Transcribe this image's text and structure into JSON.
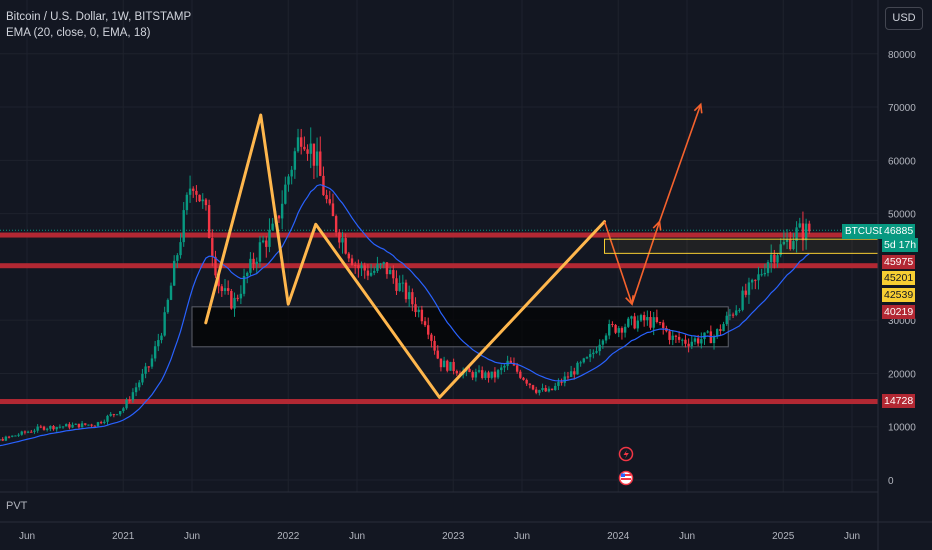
{
  "legend": {
    "title": "Bitcoin / U.S. Dollar, 1W, BITSTAMP",
    "indicator": "EMA (20, close, 0, EMA, 18)"
  },
  "currency_button": "USD",
  "pvt_label": "PVT",
  "y_axis_labels": [
    "80000",
    "70000",
    "60000",
    "50000",
    "30000",
    "20000",
    "10000",
    "0"
  ],
  "x_axis_labels": [
    "Jun",
    "2021",
    "Jun",
    "2022",
    "Jun",
    "2023",
    "Jun",
    "2024",
    "Jun",
    "2025",
    "Jun"
  ],
  "price_tags": {
    "symbol": "BTCUSD",
    "last_price": "46885",
    "countdown": "5d 17h",
    "tag_45975": "45975",
    "tag_45201": "45201",
    "tag_42539": "42539",
    "tag_40219": "40219",
    "tag_14728": "14728"
  },
  "colors": {
    "background": "#131722",
    "up_candle": "#089981",
    "down_candle": "#f23645",
    "ema_line": "#2962ff",
    "zigzag": "#ffb74d",
    "projection_arrow": "#f5622d",
    "resistance": "#b22833",
    "zone_fill": "#000000"
  },
  "chart_data": {
    "type": "candlestick",
    "symbol": "BTCUSD",
    "interval": "1W",
    "exchange": "BITSTAMP",
    "y_range": [
      0,
      88000
    ],
    "x_range": [
      "2020-05",
      "2025-08"
    ],
    "horizontal_levels": [
      14728,
      40219,
      45975
    ],
    "support_zone": {
      "from": "2021-06",
      "to": "2024-09",
      "low": 25000,
      "high": 32500
    },
    "zigzag_points": [
      {
        "date": "2021-07",
        "price": 29500
      },
      {
        "date": "2021-11",
        "price": 68500
      },
      {
        "date": "2022-01",
        "price": 33000
      },
      {
        "date": "2022-03",
        "price": 48000
      },
      {
        "date": "2022-12",
        "price": 15500
      },
      {
        "date": "2023-12",
        "price": 48500
      }
    ],
    "projection_path": [
      {
        "date": "2023-12",
        "price": 48500
      },
      {
        "date": "2024-02",
        "price": 33000
      },
      {
        "date": "2024-04",
        "price": 48500
      },
      {
        "date": "2024-07",
        "price": 70500
      }
    ],
    "ema_period": 20
  }
}
